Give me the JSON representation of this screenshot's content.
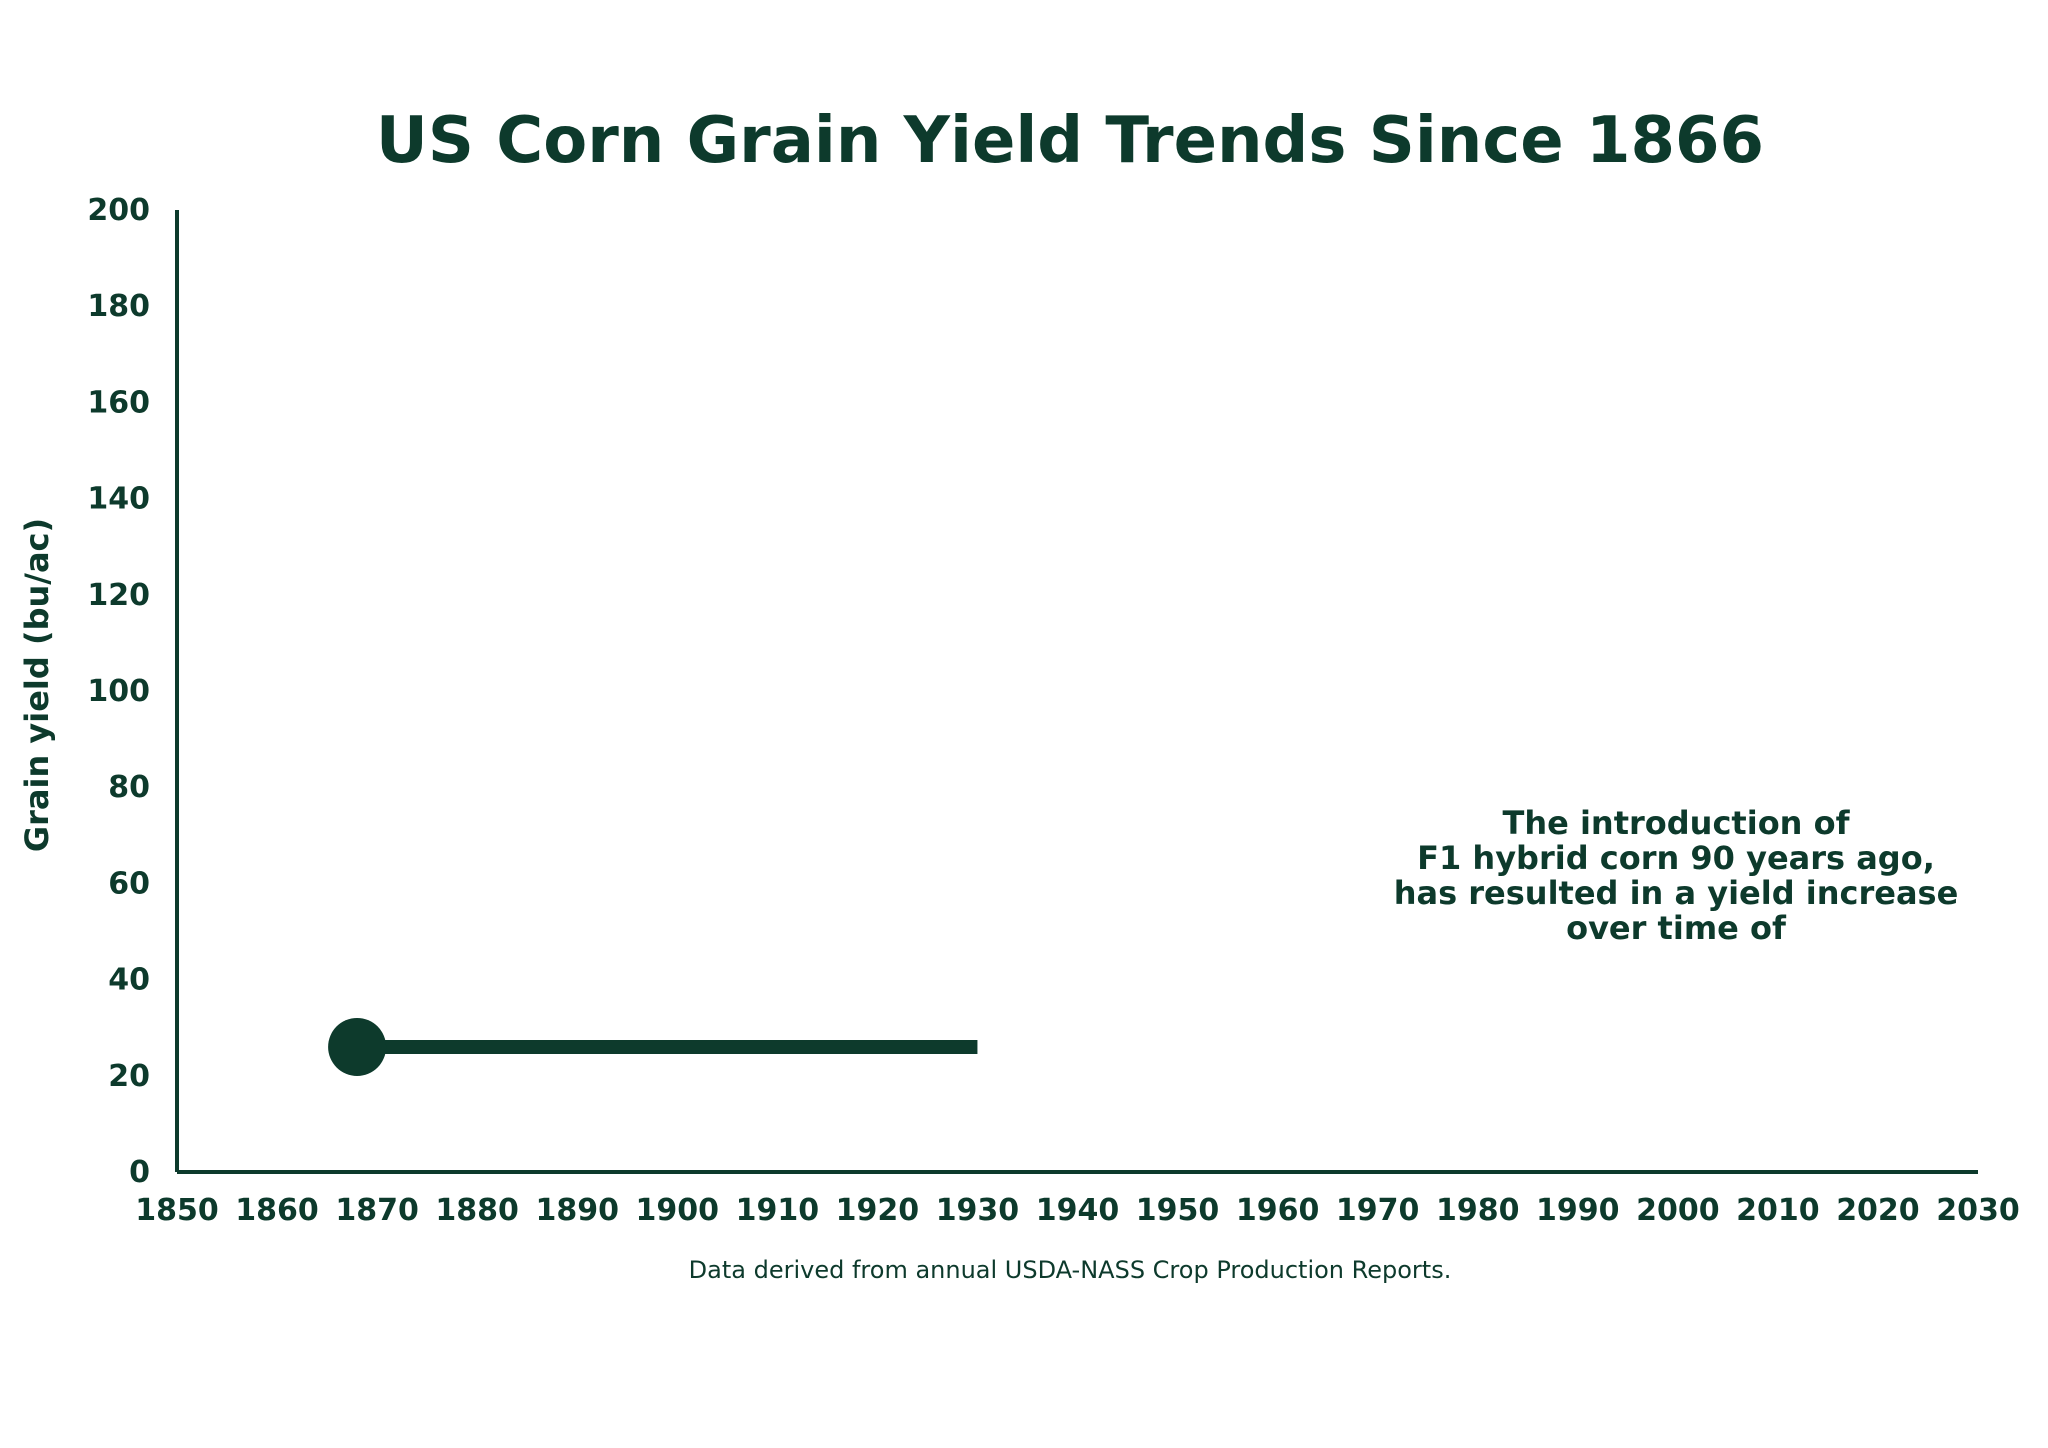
{
  "chart_data": {
    "type": "line",
    "title": "US Corn Grain Yield Trends Since 1866",
    "xlabel": "",
    "ylabel": "Grain yield (bu/ac)",
    "xlim": [
      1850,
      2030
    ],
    "ylim": [
      0,
      200
    ],
    "x_ticks": [
      1850,
      1860,
      1870,
      1880,
      1890,
      1900,
      1910,
      1920,
      1930,
      1940,
      1950,
      1960,
      1970,
      1980,
      1990,
      2000,
      2010,
      2020,
      2030
    ],
    "y_ticks": [
      0,
      20,
      40,
      60,
      80,
      100,
      120,
      140,
      160,
      180,
      200
    ],
    "grid": false,
    "series": [
      {
        "x": [
          1868,
          1930
        ],
        "y": [
          26,
          26
        ],
        "color": "#0d3a2c",
        "start_marker": "circle"
      }
    ],
    "annotation": {
      "lines": [
        "The introduction of",
        "F1 hybrid corn 90 years ago,",
        "has resulted in a yield increase",
        "over time of"
      ]
    },
    "source": "Data derived from annual USDA-NASS Crop Production Reports."
  },
  "colors": {
    "primary": "#0d3a2c",
    "background": "#ffffff"
  }
}
